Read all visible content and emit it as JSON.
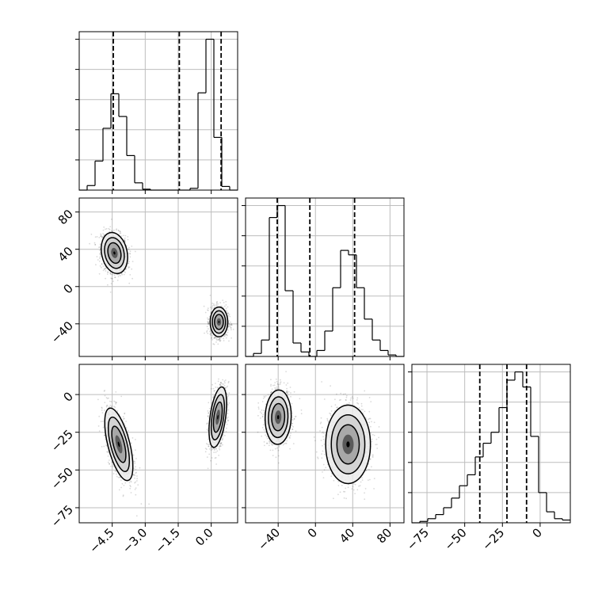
{
  "figure": {
    "type": "corner-plot",
    "grid": true,
    "variables": 3
  },
  "colors": {
    "axis": "#000000",
    "grid": "#bdbdbd",
    "contour_fill": [
      "#ebebeb",
      "#d3d3d3",
      "#a8a8a8",
      "#5a5a5a",
      "#000000"
    ],
    "scatter": "#000000"
  },
  "chart_data": [
    {
      "panel": "hist-p1",
      "type": "histogram",
      "xlim": [
        -6,
        1.2
      ],
      "bins": [
        -6,
        -5.64,
        -5.28,
        -4.92,
        -4.56,
        -4.2,
        -3.84,
        -3.48,
        -3.12,
        -2.76,
        -2.4,
        -2.04,
        -1.68,
        -1.32,
        -0.96,
        -0.6,
        -0.24,
        0.12,
        0.48,
        0.84,
        1.2
      ],
      "counts": [
        0,
        5,
        32,
        68,
        106,
        81,
        38,
        8,
        1,
        0,
        0,
        0,
        0,
        0,
        2,
        107,
        166,
        58,
        4,
        0
      ],
      "quantiles": [
        -4.45,
        -1.45,
        0.45
      ]
    },
    {
      "panel": "hist-p2",
      "type": "histogram",
      "xlim": [
        -75,
        95
      ],
      "bins": [
        -75,
        -66.5,
        -58,
        -49.5,
        -41,
        -32.5,
        -24,
        -15.5,
        -7,
        1.5,
        10,
        18.5,
        27,
        35.5,
        44,
        52.5,
        61,
        69.5,
        78,
        86.5,
        95
      ],
      "counts": [
        0,
        2,
        11,
        93,
        101,
        44,
        9,
        3,
        0,
        4,
        17,
        46,
        71,
        68,
        46,
        25,
        11,
        4,
        1,
        0
      ],
      "quantiles": [
        -41,
        -6,
        42
      ]
    },
    {
      "panel": "hist-p3",
      "type": "histogram",
      "xlim": [
        -85,
        20
      ],
      "bins": [
        -85,
        -79.75,
        -74.5,
        -69.25,
        -64,
        -58.75,
        -53.5,
        -48.25,
        -43,
        -37.75,
        -32.5,
        -27.25,
        -22,
        -16.75,
        -11.5,
        -6.25,
        -1,
        4.25,
        9.5,
        14.75,
        20
      ],
      "counts": [
        0,
        1,
        3,
        6,
        11,
        18,
        27,
        35,
        48,
        58,
        66,
        84,
        104,
        110,
        99,
        63,
        22,
        8,
        3,
        2
      ],
      "quantiles": [
        -40,
        -22,
        -9
      ]
    },
    {
      "panel": "joint-p1-p2",
      "type": "scatter-contour",
      "xlim": [
        -6,
        1.2
      ],
      "ylim": [
        -75,
        95
      ],
      "clusters": [
        {
          "mean": [
            -4.4,
            36
          ],
          "sd": [
            0.3,
            11
          ],
          "rho": -0.2,
          "n": 1100
        },
        {
          "mean": [
            0.35,
            -38
          ],
          "sd": [
            0.2,
            8
          ],
          "rho": 0.0,
          "n": 1100
        }
      ]
    },
    {
      "panel": "joint-p1-p3",
      "type": "scatter-contour",
      "xlim": [
        -6,
        1.2
      ],
      "ylim": [
        -85,
        20
      ],
      "clusters": [
        {
          "mean": [
            -4.2,
            -33
          ],
          "sd": [
            0.32,
            12
          ],
          "rho": -0.6,
          "n": 1100
        },
        {
          "mean": [
            0.3,
            -15
          ],
          "sd": [
            0.2,
            10
          ],
          "rho": 0.45,
          "n": 1100
        }
      ]
    },
    {
      "panel": "joint-p2-p3",
      "type": "scatter-contour",
      "xlim": [
        -75,
        95
      ],
      "ylim": [
        -85,
        20
      ],
      "clusters": [
        {
          "mean": [
            -40,
            -15
          ],
          "sd": [
            7,
            9
          ],
          "rho": 0.05,
          "n": 1100
        },
        {
          "mean": [
            35,
            -33
          ],
          "sd": [
            12,
            13
          ],
          "rho": 0.0,
          "n": 1100
        }
      ]
    }
  ],
  "axes": {
    "p1_ticks": [
      {
        "value": -4.5,
        "label": "−4.5"
      },
      {
        "value": -3.0,
        "label": "−3.0"
      },
      {
        "value": -1.5,
        "label": "−1.5"
      },
      {
        "value": 0.0,
        "label": "0.0"
      }
    ],
    "p2_ticks": [
      {
        "value": -40,
        "label": "−40"
      },
      {
        "value": 0,
        "label": "0"
      },
      {
        "value": 40,
        "label": "40"
      },
      {
        "value": 80,
        "label": "80"
      }
    ],
    "p3_ticks": [
      {
        "value": -75,
        "label": "−75"
      },
      {
        "value": -50,
        "label": "−50"
      },
      {
        "value": -25,
        "label": "−25"
      },
      {
        "value": 0,
        "label": "0"
      }
    ]
  }
}
